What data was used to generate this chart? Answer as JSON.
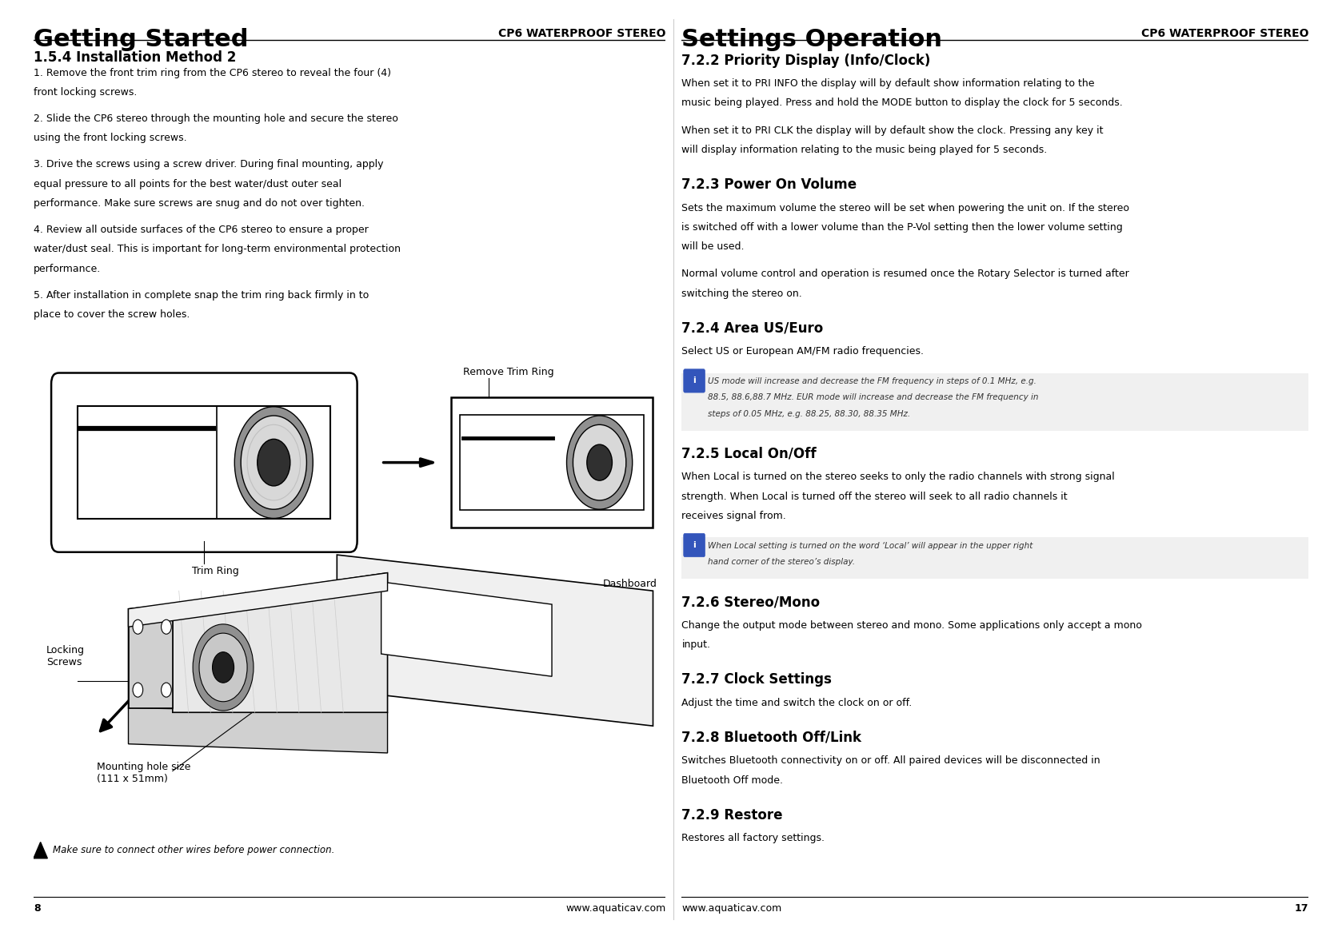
{
  "bg_color": "#ffffff",
  "left_header": "Getting Started",
  "right_header": "Settings Operation",
  "subheader": "CP6 WATERPROOF STEREO",
  "left_section_title": "1.5.4 Installation Method 2",
  "left_items": [
    "1. Remove the front trim ring from the CP6 stereo to reveal the four (4) front locking screws.",
    "2. Slide the CP6 stereo through the mounting hole and secure the stereo using the front locking screws.",
    "3. Drive the screws using a screw driver. During final mounting, apply equal pressure to all points for the best water/dust outer seal performance. Make sure screws are snug and do not over tighten.",
    "4. Review all outside surfaces of the CP6 stereo to ensure a proper water/dust seal. This is important for long-term environmental protection performance.",
    "5. After installation in complete snap the trim ring back firmly in to place to cover the screw holes."
  ],
  "right_sections": [
    {
      "title": "7.2.2 Priority Display (Info/Clock)",
      "paragraphs": [
        "When set it to PRI INFO the display will by default show information relating to the music being played. Press and hold the MODE button to display the clock for 5 seconds.",
        "When set it to PRI CLK the display will by default show the clock. Pressing any key it will display information relating to the music being played for 5 seconds."
      ],
      "info": null
    },
    {
      "title": "7.2.3 Power On Volume",
      "paragraphs": [
        "Sets the maximum volume the stereo will be set when powering the unit on. If the stereo is switched off with a lower volume than the P-Vol setting then the lower volume setting will be used.",
        "Normal volume control and operation is resumed once the Rotary Selector is turned after switching the stereo on."
      ],
      "info": null
    },
    {
      "title": "7.2.4 Area US/Euro",
      "paragraphs": [
        "Select US or European AM/FM radio frequencies."
      ],
      "info": "US mode will increase and decrease the FM frequency in steps of 0.1 MHz, e.g. 88.5, 88.6,88.7 MHz. EUR mode will increase and decrease the FM frequency in steps of 0.05 MHz, e.g. 88.25, 88.30, 88.35 MHz."
    },
    {
      "title": "7.2.5 Local On/Off",
      "paragraphs": [
        "When Local is turned on the stereo seeks to only the radio channels with strong signal strength. When Local is turned off the stereo will seek to all radio channels it receives signal from."
      ],
      "info": "When Local setting is turned on the word ‘Local’ will appear in the upper right hand corner of the stereo’s display."
    },
    {
      "title": "7.2.6 Stereo/Mono",
      "paragraphs": [
        "Change the output mode between stereo and mono. Some applications only accept a mono input."
      ],
      "info": null
    },
    {
      "title": "7.2.7 Clock Settings",
      "paragraphs": [
        "Adjust the time and switch the clock on or off."
      ],
      "info": null
    },
    {
      "title": "7.2.8 Bluetooth Off/Link",
      "paragraphs": [
        "Switches Bluetooth connectivity on or off. All paired devices will be disconnected in Bluetooth Off mode."
      ],
      "info": null
    },
    {
      "title": "7.2.9 Restore",
      "paragraphs": [
        "Restores all factory settings."
      ],
      "info": null
    }
  ],
  "footer_left_num": "8",
  "footer_left_url": "www.aquaticav.com",
  "footer_right_url": "www.aquaticav.com",
  "footer_right_num": "17",
  "warning_text": "Make sure to connect other wires before power connection.",
  "label_remove_trim": "Remove Trim Ring",
  "label_trim_ring": "Trim Ring",
  "label_mounting": "Mounting hole size\n(111 x 51mm)",
  "label_dashboard": "Dashboard",
  "label_locking": "Locking\nScrews",
  "divider_color": "#cccccc",
  "header_font_size": 22,
  "subheader_font_size": 10,
  "section_title_font_size": 12,
  "body_font_size": 9,
  "item_font_size": 9,
  "info_font_size": 7.5,
  "footer_font_size": 9
}
